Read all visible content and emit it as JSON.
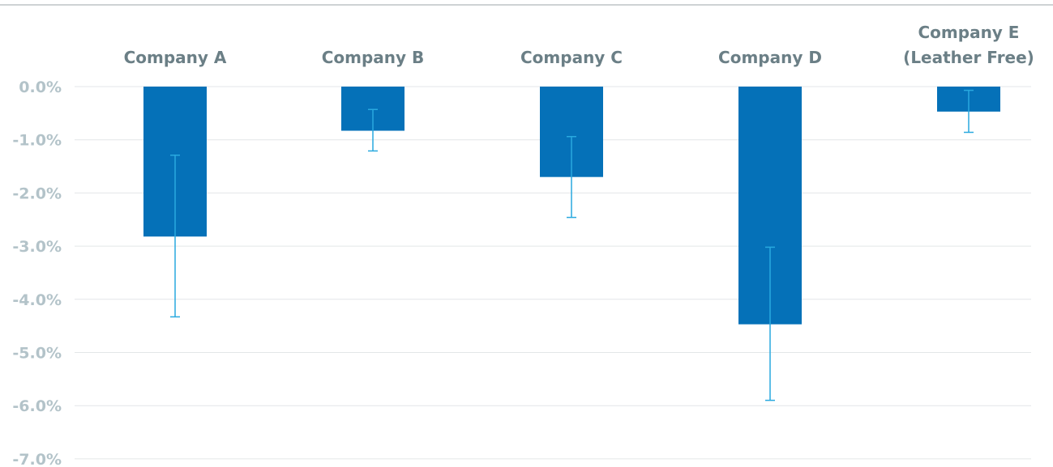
{
  "chart_data": {
    "type": "bar",
    "categories": [
      [
        "Company A"
      ],
      [
        "Company B"
      ],
      [
        "Company C"
      ],
      [
        "Company D"
      ],
      [
        "Company E",
        "(Leather Free)"
      ]
    ],
    "values": [
      -2.82,
      -0.83,
      -1.7,
      -4.47,
      -0.47
    ],
    "error_low": [
      -4.33,
      -1.21,
      -2.46,
      -5.9,
      -0.86
    ],
    "error_high": [
      -1.29,
      -0.43,
      -0.94,
      -3.02,
      -0.07
    ],
    "ylim": [
      -7.0,
      0.0
    ],
    "yticks": [
      0,
      -1,
      -2,
      -3,
      -4,
      -5,
      -6,
      -7
    ],
    "ytick_labels": [
      "0.0%",
      "-1.0%",
      "-2.0%",
      "-3.0%",
      "-4.0%",
      "-5.0%",
      "-6.0%",
      "-7.0%"
    ],
    "category_labels_position": "top",
    "grid": true,
    "colors": {
      "bar": "#0571b8",
      "error": "#29a9df",
      "grid": "#e3e6e8",
      "tick": "#b3c3c9",
      "category": "#6b7f86",
      "frame": "#9ea6a9"
    }
  }
}
